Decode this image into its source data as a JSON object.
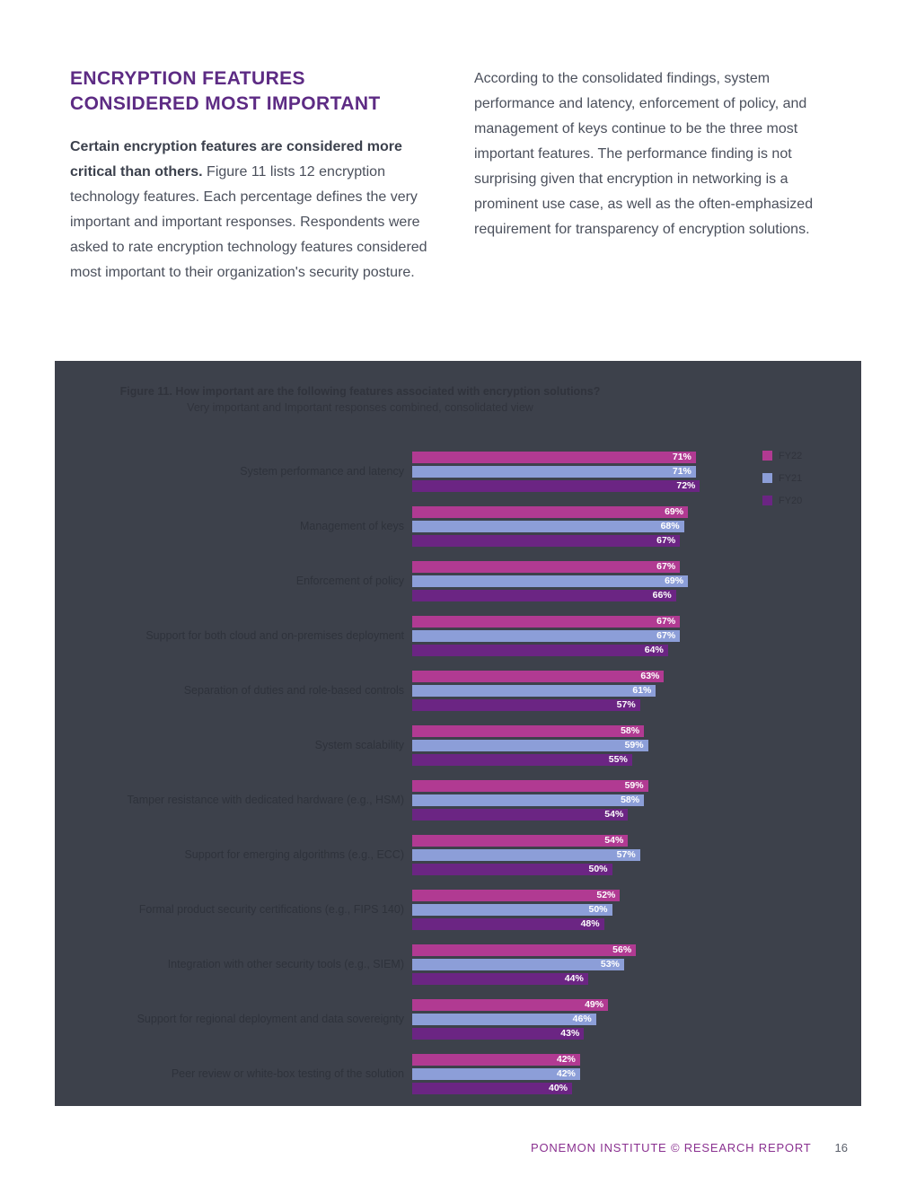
{
  "header": {
    "title": "ENCRYPTION FEATURES CONSIDERED MOST IMPORTANT",
    "lead_bold": "Certain encryption features are considered more critical than others.",
    "lead_rest": "Figure 11 lists 12 encryption technology features. Each percentage defines the very important and important responses. Respondents were asked to rate encryption technology features considered most important to their organization's security posture.",
    "right_paragraph": "According to the consolidated findings, system performance and latency, enforcement of policy, and management of keys continue to be the three most important features. The performance finding is not surprising given that encryption in networking is a prominent use case, as well as the often-emphasized requirement for transparency of encryption solutions."
  },
  "chart_data": {
    "type": "bar",
    "orientation": "horizontal",
    "title": "Figure 11. How important are the following features associated with encryption solutions?",
    "subtitle": "Very important and Important responses combined, consolidated view",
    "categories": [
      "System performance and latency",
      "Management of keys",
      "Enforcement of policy",
      "Support for both cloud and on-premises deployment",
      "Separation of duties and role-based controls",
      "System scalability",
      "Tamper resistance with dedicated hardware (e.g., HSM)",
      "Support for emerging algorithms (e.g., ECC)",
      "Formal product security certifications (e.g., FIPS 140)",
      "Integration with other security tools (e.g., SIEM)",
      "Support for regional deployment and data sovereignty",
      "Peer review or white-box testing of the solution"
    ],
    "series": [
      {
        "name": "FY22",
        "color": "#b13a92",
        "values": [
          71,
          69,
          67,
          67,
          63,
          58,
          59,
          54,
          52,
          56,
          49,
          42
        ]
      },
      {
        "name": "FY21",
        "color": "#8c9ed8",
        "values": [
          71,
          68,
          69,
          67,
          61,
          59,
          58,
          57,
          50,
          53,
          46,
          42
        ]
      },
      {
        "name": "FY20",
        "color": "#6b2583",
        "values": [
          72,
          67,
          66,
          64,
          57,
          55,
          54,
          50,
          48,
          44,
          43,
          40
        ]
      }
    ],
    "value_suffix": "%",
    "xlim": [
      0,
      100
    ],
    "grid": false,
    "legend_position": "top-right",
    "panel_bg": "#3d414b",
    "category_label_color": "#2e323b",
    "value_label_color": "#ffffff"
  },
  "footer": {
    "text": "PONEMON INSTITUTE © RESEARCH REPORT",
    "page": "16"
  },
  "colors": {
    "accent_purple": "#5d2b84",
    "footer_purple": "#8a3190",
    "body_text": "#4b505c",
    "chart_panel_bg": "#3d414b"
  }
}
